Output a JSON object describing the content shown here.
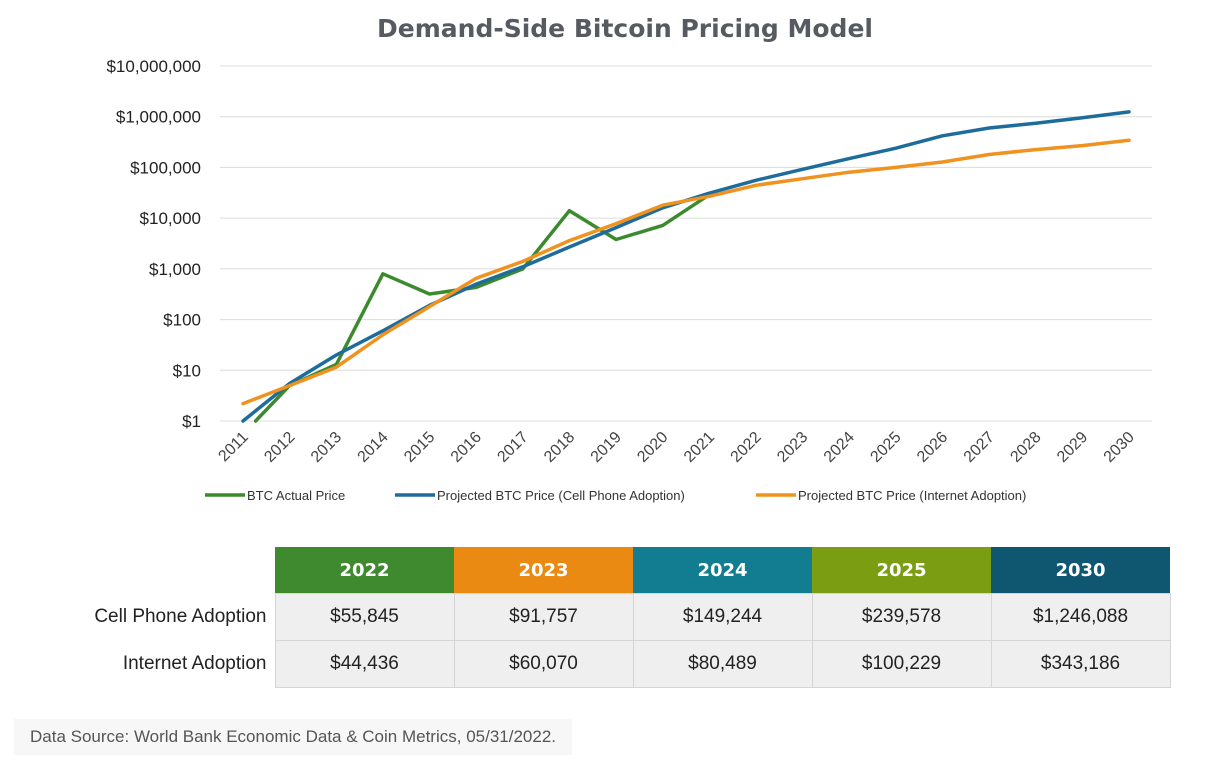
{
  "chart_data": {
    "type": "line",
    "title": "Demand-Side Bitcoin Pricing Model",
    "y_scale": "log",
    "ylim": [
      1,
      10000000
    ],
    "y_ticks": [
      "$1",
      "$10",
      "$100",
      "$1,000",
      "$10,000",
      "$100,000",
      "$1,000,000",
      "$10,000,000"
    ],
    "y_tick_values": [
      1,
      10,
      100,
      1000,
      10000,
      100000,
      1000000,
      10000000
    ],
    "categories": [
      "2011",
      "2012",
      "2013",
      "2014",
      "2015",
      "2016",
      "2017",
      "2018",
      "2019",
      "2020",
      "2021",
      "2022",
      "2023",
      "2024",
      "2025",
      "2026",
      "2027",
      "2028",
      "2029",
      "2030"
    ],
    "grid": "horizontal",
    "legend_position": "bottom",
    "series": [
      {
        "name": "BTC Actual Price",
        "color": "#3c8a2e",
        "values": [
          0.55,
          5,
          13,
          800,
          320,
          430,
          1000,
          14000,
          3800,
          7200,
          29000,
          null,
          null,
          null,
          null,
          null,
          null,
          null,
          null,
          null
        ]
      },
      {
        "name": "Projected BTC Price (Cell Phone Adoption)",
        "color": "#1e6c9b",
        "values": [
          1,
          5.5,
          20,
          60,
          190,
          500,
          1100,
          2700,
          6500,
          16000,
          31000,
          55845,
          91757,
          149244,
          239578,
          420000,
          600000,
          740000,
          950000,
          1246088
        ]
      },
      {
        "name": "Projected BTC Price (Internet Adoption)",
        "color": "#f0921f",
        "values": [
          2.2,
          5,
          11.5,
          50,
          180,
          650,
          1400,
          3600,
          7800,
          18000,
          27000,
          44436,
          60070,
          80489,
          100229,
          128000,
          180000,
          225000,
          270000,
          343186
        ]
      }
    ]
  },
  "table": {
    "headers": [
      {
        "label": "2022",
        "color": "#3f8a2f"
      },
      {
        "label": "2023",
        "color": "#ea8a12"
      },
      {
        "label": "2024",
        "color": "#127c90"
      },
      {
        "label": "2025",
        "color": "#7a9d12"
      },
      {
        "label": "2030",
        "color": "#0f5671"
      }
    ],
    "rows": [
      {
        "label": "Cell Phone Adoption",
        "values": [
          "$55,845",
          "$91,757",
          "$149,244",
          "$239,578",
          "$1,246,088"
        ]
      },
      {
        "label": "Internet Adoption",
        "values": [
          "$44,436",
          "$60,070",
          "$80,489",
          "$100,229",
          "$343,186"
        ]
      }
    ]
  },
  "footer": {
    "source": "Data Source: World Bank Economic Data & Coin Metrics, 05/31/2022."
  }
}
